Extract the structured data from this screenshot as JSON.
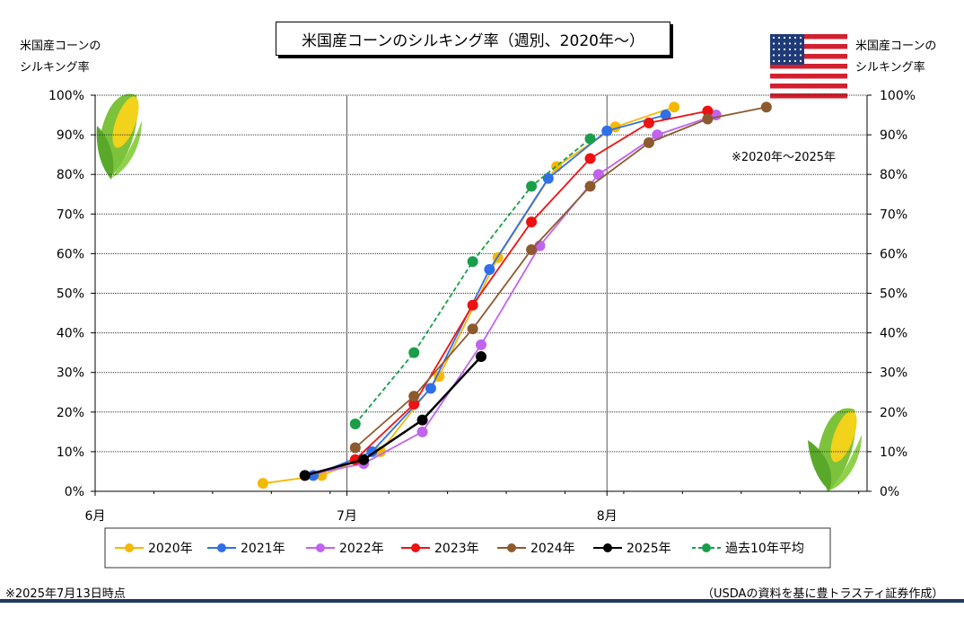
{
  "chart_data": {
    "type": "line",
    "title": "米国産コーンのシルキング率（週別、2020年～）",
    "ylabel_left": [
      "米国産コーンの",
      "シルキング率"
    ],
    "ylabel_right": [
      "米国産コーンの",
      "シルキング率"
    ],
    "note": "※2020年～2025年",
    "yticks": [
      "0%",
      "10%",
      "20%",
      "30%",
      "40%",
      "50%",
      "60%",
      "70%",
      "80%",
      "90%",
      "100%"
    ],
    "ylim": [
      0,
      100
    ],
    "x_range_days": [
      "6月1日",
      "9月1日"
    ],
    "x_month_ticks": [
      {
        "label": "6月",
        "date": "6/1"
      },
      {
        "label": "7月",
        "date": "7/1"
      },
      {
        "label": "8月",
        "date": "8/1"
      }
    ],
    "grid": true,
    "legend_position": "bottom",
    "series": [
      {
        "name": "2020年",
        "color": "#f5b800",
        "dashed": false,
        "x": [
          "6/21",
          "6/28",
          "7/5",
          "7/12",
          "7/19",
          "7/26",
          "8/2",
          "8/9"
        ],
        "y": [
          2,
          4,
          10,
          29,
          59,
          82,
          92,
          97
        ]
      },
      {
        "name": "2021年",
        "color": "#2f6fe8",
        "dashed": false,
        "x": [
          "6/27",
          "7/4",
          "7/11",
          "7/18",
          "7/25",
          "8/1",
          "8/8"
        ],
        "y": [
          4,
          10,
          26,
          56,
          79,
          91,
          95
        ]
      },
      {
        "name": "2022年",
        "color": "#c064f0",
        "dashed": false,
        "x": [
          "6/26",
          "7/3",
          "7/10",
          "7/17",
          "7/24",
          "7/31",
          "8/7",
          "8/14"
        ],
        "y": [
          4,
          7,
          15,
          37,
          62,
          80,
          90,
          95
        ]
      },
      {
        "name": "2023年",
        "color": "#ee1111",
        "dashed": false,
        "x": [
          "7/2",
          "7/9",
          "7/16",
          "7/23",
          "7/30",
          "8/6",
          "8/13"
        ],
        "y": [
          8,
          22,
          47,
          68,
          84,
          93,
          96
        ]
      },
      {
        "name": "2024年",
        "color": "#8c5a2e",
        "dashed": false,
        "x": [
          "7/2",
          "7/9",
          "7/16",
          "7/23",
          "7/30",
          "8/6",
          "8/13",
          "8/20"
        ],
        "y": [
          11,
          24,
          41,
          61,
          77,
          88,
          94,
          97
        ]
      },
      {
        "name": "2025年",
        "color": "#000000",
        "dashed": false,
        "x": [
          "6/26",
          "7/3",
          "7/10",
          "7/17"
        ],
        "y": [
          4,
          8,
          18,
          34
        ]
      },
      {
        "name": "過去10年平均",
        "color": "#1a9e4a",
        "dashed": true,
        "x": [
          "7/2",
          "7/9",
          "7/16",
          "7/23",
          "7/30"
        ],
        "y": [
          17,
          35,
          58,
          77,
          89
        ]
      }
    ]
  },
  "footer": {
    "left": "※2025年7月13日時点",
    "right": "（USDAの資料を基に豊トラスティ証券作成）"
  }
}
